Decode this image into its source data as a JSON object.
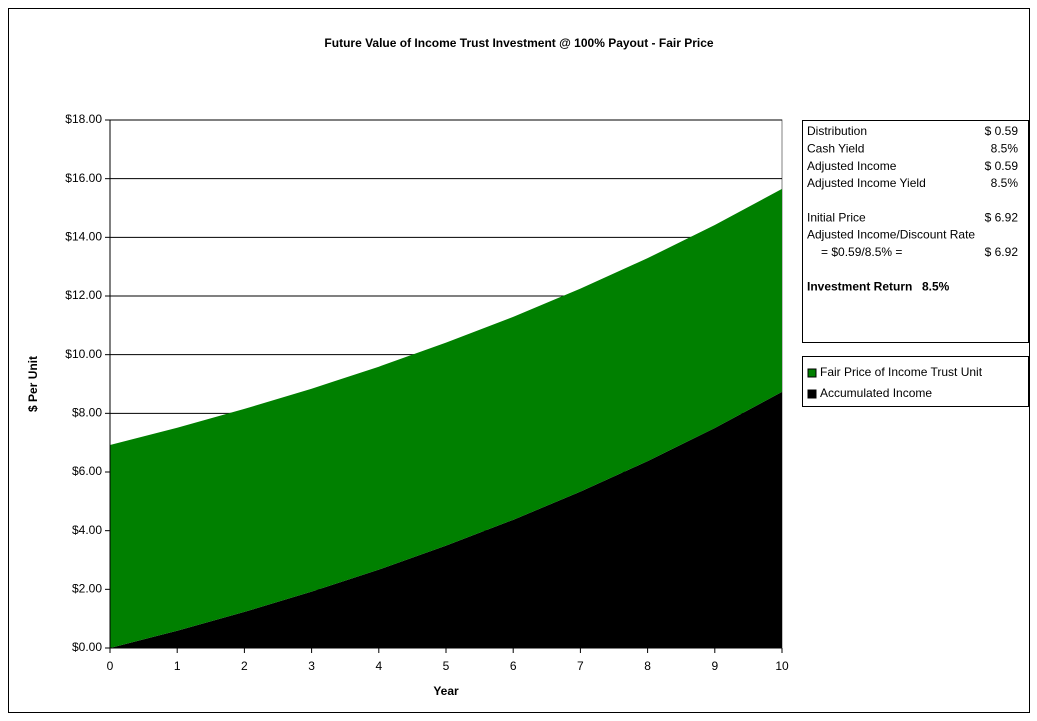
{
  "chart_data": {
    "type": "stacked_area",
    "title": "Future Value of Income Trust Investment @ 100% Payout - Fair Price",
    "x_label": "Year",
    "y_label": "$ Per Unit",
    "x": [
      0,
      1,
      2,
      3,
      4,
      5,
      6,
      7,
      8,
      9,
      10
    ],
    "xlim": [
      0,
      10
    ],
    "xticks": [
      0,
      1,
      2,
      3,
      4,
      5,
      6,
      7,
      8,
      9,
      10
    ],
    "ylim": [
      0,
      18
    ],
    "yticks": [
      {
        "value": 0,
        "label": "$0.00"
      },
      {
        "value": 2,
        "label": "$2.00"
      },
      {
        "value": 4,
        "label": "$4.00"
      },
      {
        "value": 6,
        "label": "$6.00"
      },
      {
        "value": 8,
        "label": "$8.00"
      },
      {
        "value": 10,
        "label": "$10.00"
      },
      {
        "value": 12,
        "label": "$12.00"
      },
      {
        "value": 14,
        "label": "$14.00"
      },
      {
        "value": 16,
        "label": "$16.00"
      },
      {
        "value": 18,
        "label": "$18.00"
      }
    ],
    "grid": true,
    "series": [
      {
        "name": "Fair Price of Income Trust Unit",
        "color": "#008000",
        "values": [
          6.92,
          6.92,
          6.92,
          6.92,
          6.92,
          6.92,
          6.92,
          6.92,
          6.92,
          6.92,
          6.92
        ]
      },
      {
        "name": "Accumulated Income",
        "color": "#000000",
        "values": [
          0,
          0.59,
          1.23,
          1.92,
          2.67,
          3.49,
          4.37,
          5.33,
          6.37,
          7.5,
          8.73
        ]
      }
    ],
    "info_box": [
      {
        "label": "Distribution",
        "value": "$ 0.59"
      },
      {
        "label": "Cash Yield",
        "value": "8.5%"
      },
      {
        "label": "Adjusted Income",
        "value": "$ 0.59"
      },
      {
        "label": "Adjusted Income Yield",
        "value": "8.5%"
      },
      {
        "label": "Initial Price",
        "value": "$ 6.92"
      },
      {
        "label": "Adjusted Income/Discount Rate"
      },
      {
        "label": "= $0.59/8.5% =",
        "value": "$ 6.92"
      },
      {
        "label": "Investment Return",
        "value": "8.5%",
        "bold": true
      }
    ]
  }
}
